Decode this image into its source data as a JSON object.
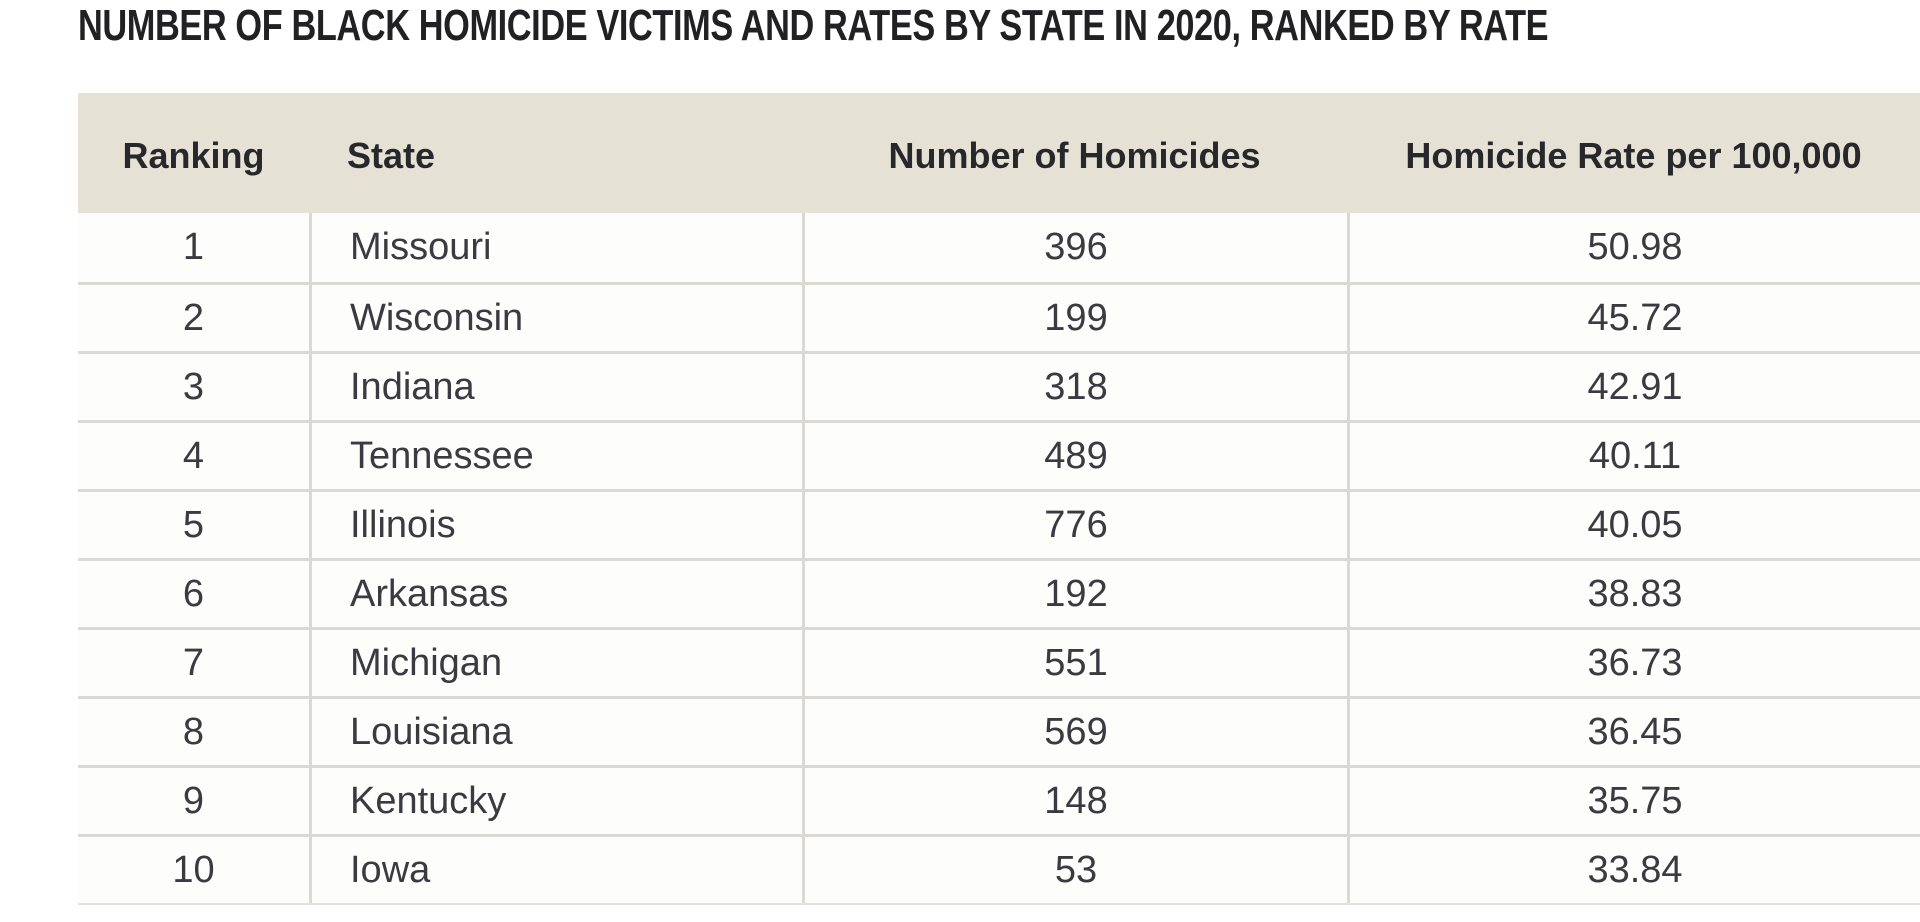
{
  "title": "NUMBER OF BLACK HOMICIDE VICTIMS AND RATES BY STATE IN 2020, RANKED BY RATE",
  "table": {
    "columns": {
      "ranking": "Ranking",
      "state": "State",
      "homicides": "Number of Homicides",
      "rate": "Homicide Rate per 100,000"
    },
    "rows": [
      {
        "ranking": "1",
        "state": "Missouri",
        "homicides": "396",
        "rate": "50.98"
      },
      {
        "ranking": "2",
        "state": "Wisconsin",
        "homicides": "199",
        "rate": "45.72"
      },
      {
        "ranking": "3",
        "state": "Indiana",
        "homicides": "318",
        "rate": "42.91"
      },
      {
        "ranking": "4",
        "state": "Tennessee",
        "homicides": "489",
        "rate": "40.11"
      },
      {
        "ranking": "5",
        "state": "Illinois",
        "homicides": "776",
        "rate": "40.05"
      },
      {
        "ranking": "6",
        "state": "Arkansas",
        "homicides": "192",
        "rate": "38.83"
      },
      {
        "ranking": "7",
        "state": "Michigan",
        "homicides": "551",
        "rate": "36.73"
      },
      {
        "ranking": "8",
        "state": "Louisiana",
        "homicides": "569",
        "rate": "36.45"
      },
      {
        "ranking": "9",
        "state": "Kentucky",
        "homicides": "148",
        "rate": "35.75"
      },
      {
        "ranking": "10",
        "state": "Iowa",
        "homicides": "53",
        "rate": "33.84"
      }
    ]
  },
  "chart_data": {
    "type": "table",
    "title": "NUMBER OF BLACK HOMICIDE VICTIMS AND RATES BY STATE IN 2020, RANKED BY RATE",
    "categories": [
      "Missouri",
      "Wisconsin",
      "Indiana",
      "Tennessee",
      "Illinois",
      "Arkansas",
      "Michigan",
      "Louisiana",
      "Kentucky",
      "Iowa"
    ],
    "series": [
      {
        "name": "Number of Homicides",
        "values": [
          396,
          199,
          318,
          489,
          776,
          192,
          551,
          569,
          148,
          53
        ]
      },
      {
        "name": "Homicide Rate per 100,000",
        "values": [
          50.98,
          45.72,
          42.91,
          40.11,
          40.05,
          38.83,
          36.73,
          36.45,
          35.75,
          33.84
        ]
      }
    ]
  },
  "colors": {
    "header_background": "#e5e1d4",
    "grid_line": "#dbd9d3",
    "title_text": "#212124",
    "body_text": "#3a3a40"
  }
}
